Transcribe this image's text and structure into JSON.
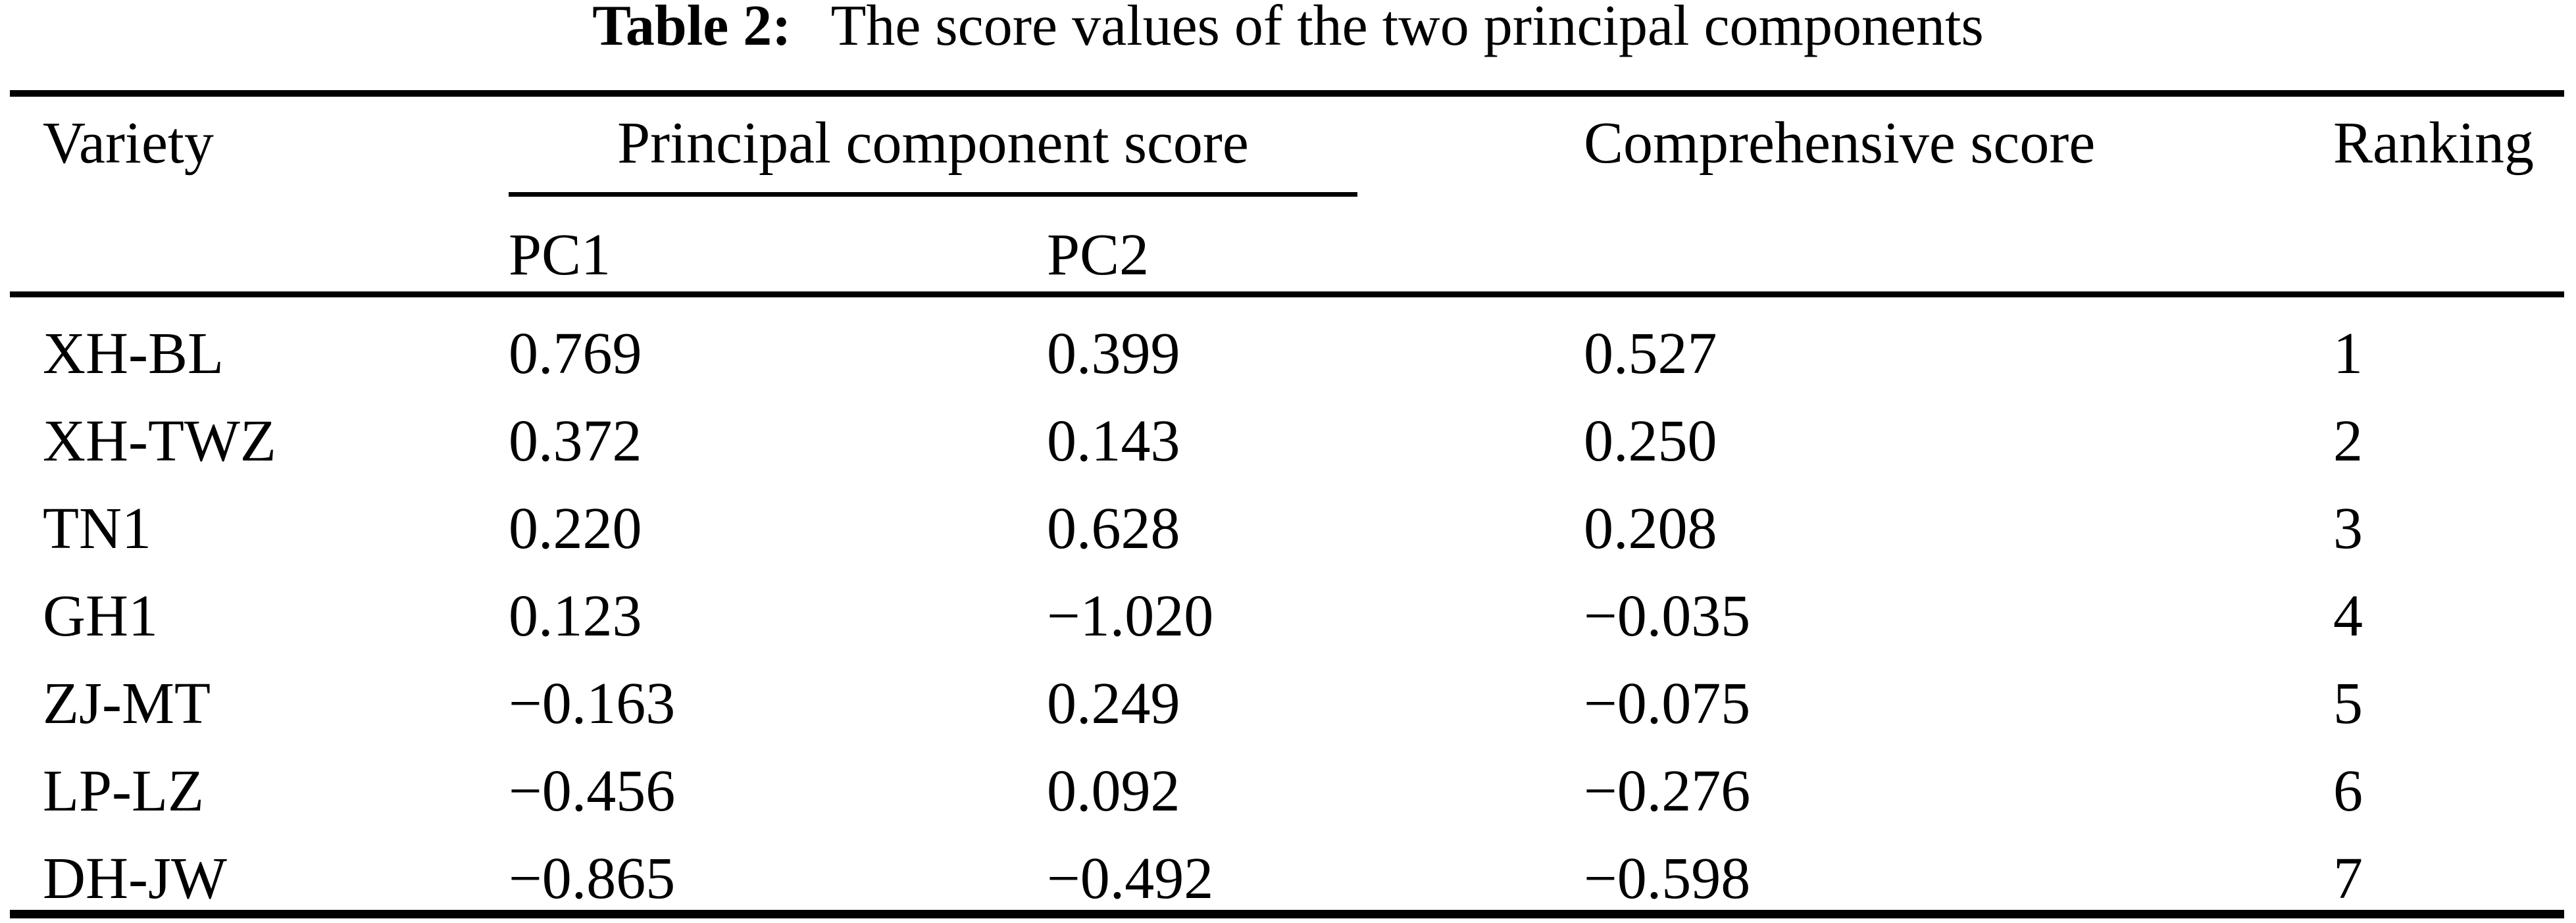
{
  "table": {
    "caption": {
      "label": "Table 2:",
      "text": "The score values of the two principal components"
    },
    "columns": {
      "variety": "Variety",
      "pc_group": "Principal component score",
      "pc1": "PC1",
      "pc2": "PC2",
      "comprehensive": "Comprehensive score",
      "ranking": "Ranking"
    },
    "rows": [
      {
        "variety": "XH-BL",
        "pc1": "0.769",
        "pc2": "0.399",
        "comprehensive": "0.527",
        "ranking": "1"
      },
      {
        "variety": "XH-TWZ",
        "pc1": "0.372",
        "pc2": "0.143",
        "comprehensive": "0.250",
        "ranking": "2"
      },
      {
        "variety": "TN1",
        "pc1": "0.220",
        "pc2": "0.628",
        "comprehensive": "0.208",
        "ranking": "3"
      },
      {
        "variety": "GH1",
        "pc1": "0.123",
        "pc2": "−1.020",
        "comprehensive": "−0.035",
        "ranking": "4"
      },
      {
        "variety": "ZJ-MT",
        "pc1": "−0.163",
        "pc2": "0.249",
        "comprehensive": "−0.075",
        "ranking": "5"
      },
      {
        "variety": "LP-LZ",
        "pc1": "−0.456",
        "pc2": "0.092",
        "comprehensive": "−0.276",
        "ranking": "6"
      },
      {
        "variety": "DH-JW",
        "pc1": "−0.865",
        "pc2": "−0.492",
        "comprehensive": "−0.598",
        "ranking": "7"
      }
    ],
    "colors": {
      "text": "#000000",
      "background": "#ffffff",
      "rule": "#000000"
    }
  }
}
